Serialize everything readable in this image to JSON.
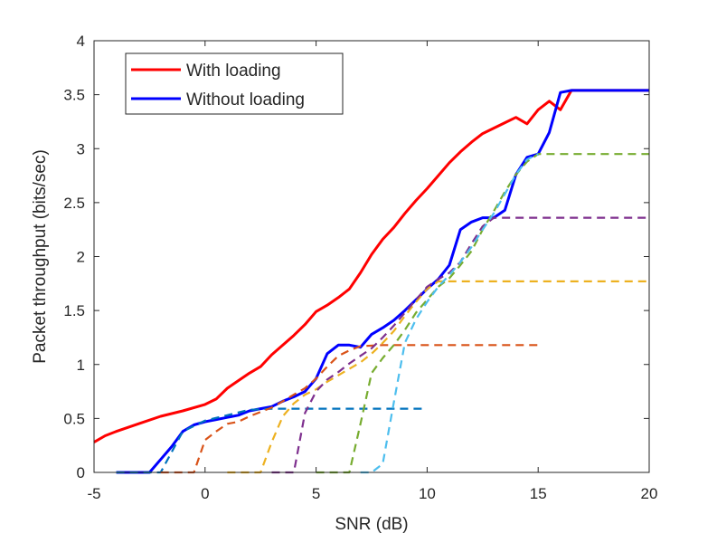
{
  "chart_data": {
    "type": "line",
    "title": "",
    "xlabel": "SNR (dB)",
    "ylabel": "Packet throughput (bits/sec)",
    "xlim": [
      -5,
      20
    ],
    "ylim": [
      0,
      4
    ],
    "xticks": [
      -5,
      0,
      5,
      10,
      15,
      20
    ],
    "yticks": [
      0,
      0.5,
      1,
      1.5,
      2,
      2.5,
      3,
      3.5,
      4
    ],
    "xtick_labels": [
      "-5",
      "0",
      "5",
      "10",
      "15",
      "20"
    ],
    "ytick_labels": [
      "0",
      "0.5",
      "1",
      "1.5",
      "2",
      "2.5",
      "3",
      "3.5",
      "4"
    ],
    "grid": false,
    "box": true,
    "legend": {
      "placement": "top-left",
      "entries": [
        {
          "label": "With loading",
          "color": "#ff0000"
        },
        {
          "label": "Without loading",
          "color": "#0000ff"
        }
      ]
    },
    "series": [
      {
        "name": "With loading",
        "color": "#ff0000",
        "style": "solid",
        "x": [
          -5,
          -4.5,
          -4,
          -3,
          -2,
          -1,
          0,
          0.5,
          1,
          1.5,
          2,
          2.5,
          3,
          3.5,
          4,
          4.5,
          5,
          5.5,
          6,
          6.5,
          7,
          7.5,
          8,
          8.5,
          9,
          9.5,
          10,
          10.5,
          11,
          11.5,
          12,
          12.5,
          13,
          13.5,
          14,
          14.5,
          15,
          15.5,
          16,
          16.5,
          17,
          17.5,
          18,
          18.5,
          19,
          19.5,
          20
        ],
        "y": [
          0.28,
          0.34,
          0.38,
          0.45,
          0.52,
          0.57,
          0.63,
          0.68,
          0.78,
          0.85,
          0.92,
          0.98,
          1.09,
          1.18,
          1.27,
          1.37,
          1.49,
          1.55,
          1.62,
          1.7,
          1.85,
          2.02,
          2.16,
          2.27,
          2.4,
          2.52,
          2.63,
          2.75,
          2.87,
          2.97,
          3.06,
          3.14,
          3.19,
          3.24,
          3.29,
          3.23,
          3.36,
          3.44,
          3.36,
          3.54,
          3.54,
          3.54,
          3.54,
          3.54,
          3.54,
          3.54,
          3.54
        ]
      },
      {
        "name": "Without loading",
        "color": "#0000ff",
        "style": "solid",
        "x": [
          -4,
          -3,
          -2.5,
          -2,
          -1.5,
          -1,
          -0.5,
          0,
          0.5,
          1,
          1.5,
          2,
          2.5,
          3,
          3.5,
          4,
          4.5,
          5,
          5.5,
          6,
          6.5,
          7,
          7.5,
          8,
          8.5,
          9,
          9.5,
          10,
          10.5,
          11,
          11.5,
          12,
          12.5,
          13,
          13.5,
          14,
          14.5,
          15,
          15.5,
          16,
          16.5,
          17,
          18,
          19,
          20
        ],
        "y": [
          0,
          0,
          0,
          0.12,
          0.24,
          0.38,
          0.44,
          0.47,
          0.49,
          0.51,
          0.53,
          0.57,
          0.59,
          0.61,
          0.66,
          0.7,
          0.75,
          0.87,
          1.1,
          1.18,
          1.18,
          1.16,
          1.28,
          1.34,
          1.41,
          1.5,
          1.6,
          1.7,
          1.79,
          1.92,
          2.25,
          2.32,
          2.36,
          2.36,
          2.43,
          2.76,
          2.92,
          2.95,
          3.15,
          3.52,
          3.54,
          3.54,
          3.54,
          3.54,
          3.54
        ]
      },
      {
        "color": "#0072bd",
        "style": "dashed",
        "x": [
          -4,
          -3,
          -2,
          -1,
          0,
          1,
          2,
          3,
          4,
          5,
          6,
          7,
          8,
          9,
          10
        ],
        "y": [
          0,
          0,
          0,
          0.38,
          0.48,
          0.53,
          0.58,
          0.59,
          0.59,
          0.59,
          0.59,
          0.59,
          0.59,
          0.59,
          0.59
        ]
      },
      {
        "color": "#d95319",
        "style": "dashed",
        "x": [
          -2,
          -1,
          -0.5,
          0,
          0.5,
          1,
          1.5,
          2,
          2.5,
          3,
          3.5,
          4,
          4.5,
          5,
          5.5,
          6,
          6.5,
          7,
          8,
          9,
          10,
          11,
          12,
          13,
          14,
          15
        ],
        "y": [
          0,
          0,
          0,
          0.3,
          0.38,
          0.45,
          0.47,
          0.52,
          0.56,
          0.6,
          0.66,
          0.72,
          0.78,
          0.87,
          0.98,
          1.08,
          1.13,
          1.17,
          1.18,
          1.18,
          1.18,
          1.18,
          1.18,
          1.18,
          1.18,
          1.18
        ]
      },
      {
        "color": "#edb120",
        "style": "dashed",
        "x": [
          1,
          2,
          2.5,
          3,
          3.5,
          4,
          4.5,
          5,
          5.5,
          6,
          6.5,
          7,
          7.5,
          8,
          8.5,
          9,
          9.5,
          10,
          10.5,
          11,
          12,
          13,
          14,
          15,
          16,
          17,
          18,
          19,
          20
        ],
        "y": [
          0,
          0,
          0,
          0.28,
          0.52,
          0.64,
          0.72,
          0.77,
          0.84,
          0.9,
          0.96,
          1.02,
          1.1,
          1.2,
          1.31,
          1.45,
          1.58,
          1.7,
          1.77,
          1.77,
          1.77,
          1.77,
          1.77,
          1.77,
          1.77,
          1.77,
          1.77,
          1.77,
          1.77
        ]
      },
      {
        "color": "#7e2f8e",
        "style": "dashed",
        "x": [
          3,
          3.5,
          4,
          4.5,
          5,
          5.5,
          6,
          6.5,
          7,
          7.5,
          8,
          8.5,
          9,
          9.5,
          10,
          10.5,
          11,
          11.5,
          12,
          12.5,
          13,
          14,
          15,
          16,
          17,
          18,
          19,
          20
        ],
        "y": [
          0,
          0,
          0,
          0.55,
          0.75,
          0.86,
          0.93,
          1.01,
          1.08,
          1.15,
          1.25,
          1.36,
          1.48,
          1.6,
          1.72,
          1.79,
          1.85,
          1.95,
          2.12,
          2.28,
          2.36,
          2.36,
          2.36,
          2.36,
          2.36,
          2.36,
          2.36,
          2.36
        ]
      },
      {
        "color": "#77ac30",
        "style": "dashed",
        "x": [
          5,
          6,
          6.5,
          7,
          7.5,
          8,
          8.5,
          9,
          9.5,
          10,
          10.5,
          11,
          11.5,
          12,
          12.5,
          13,
          13.5,
          14,
          14.5,
          15,
          16,
          17,
          18,
          19,
          20
        ],
        "y": [
          0,
          0,
          0,
          0.45,
          0.92,
          1.06,
          1.18,
          1.32,
          1.48,
          1.6,
          1.72,
          1.8,
          1.92,
          2.05,
          2.25,
          2.42,
          2.6,
          2.76,
          2.88,
          2.95,
          2.95,
          2.95,
          2.95,
          2.95,
          2.95
        ]
      },
      {
        "color": "#4dbeee",
        "style": "dashed",
        "x": [
          7,
          7.5,
          8,
          8.5,
          9,
          9.5,
          10,
          10.5,
          11,
          11.5,
          12,
          12.5,
          13,
          13.5,
          14,
          14.5,
          15
        ],
        "y": [
          0,
          0,
          0.08,
          0.65,
          1.2,
          1.42,
          1.58,
          1.72,
          1.83,
          1.95,
          2.09,
          2.25,
          2.4,
          2.58,
          2.76,
          2.9,
          2.95
        ]
      }
    ]
  }
}
